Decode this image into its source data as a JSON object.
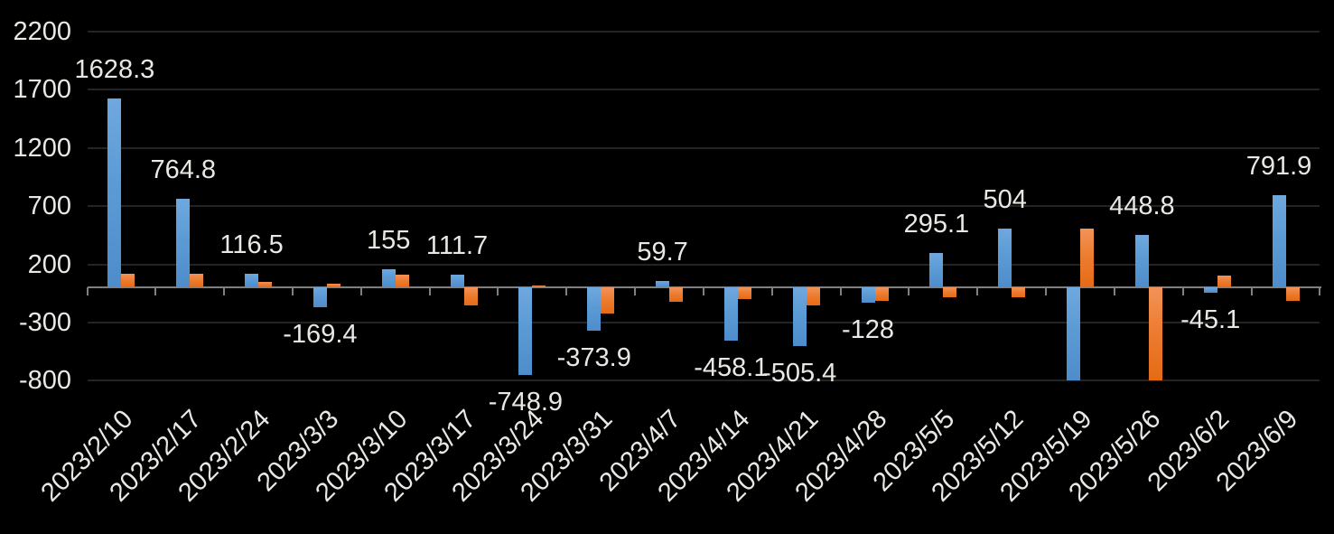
{
  "chart_data": {
    "type": "bar",
    "title": "",
    "legend": "none",
    "background_color": "#000000",
    "gridline_color": "#242424",
    "axis_line_color": "#7F7F7F",
    "text_color": "#EAE8E3",
    "categories": [
      "2023/2/10",
      "2023/2/17",
      "2023/2/24",
      "2023/3/3",
      "2023/3/10",
      "2023/3/17",
      "2023/3/24",
      "2023/3/31",
      "2023/4/7",
      "2023/4/14",
      "2023/4/21",
      "2023/4/28",
      "2023/5/5",
      "2023/5/12",
      "2023/5/19",
      "2023/5/26",
      "2023/6/2",
      "2023/6/9"
    ],
    "series": [
      {
        "name": "series-blue",
        "color": "#5B9BD5",
        "values": [
          1628.3,
          764.8,
          116.5,
          -169.4,
          155,
          111.7,
          -748.9,
          -373.9,
          59.7,
          -458.1,
          -505.4,
          -128,
          295.1,
          504,
          -800,
          448.8,
          -45.1,
          791.9
        ],
        "data_labels": [
          "1628.3",
          "764.8",
          "116.5",
          "-169.4",
          "155",
          "111.7",
          "-748.9",
          "-373.9",
          "59.7",
          "-458.1",
          "-505.4",
          "-128",
          "295.1",
          "504",
          "",
          "448.8",
          "-45.1",
          "791.9"
        ]
      },
      {
        "name": "series-orange",
        "color": "#ED7D31",
        "values": [
          120,
          120,
          50,
          35,
          110,
          -150,
          15,
          -220,
          -120,
          -100,
          -150,
          -115,
          -85,
          -85,
          510,
          -800,
          100,
          -115
        ],
        "data_labels": [
          "",
          "",
          "",
          "",
          "",
          "",
          "",
          "",
          "",
          "",
          "",
          "",
          "",
          "",
          "",
          "",
          "",
          ""
        ]
      }
    ],
    "y_axis": {
      "tick_labels": [
        "2200",
        "1700",
        "1200",
        "700",
        "200",
        "-300",
        "-800"
      ],
      "tick_values": [
        2200,
        1700,
        1200,
        700,
        200,
        -300,
        -800
      ],
      "min": -800,
      "max": 2200,
      "grid": true
    },
    "x_axis": {
      "label_rotation_deg": 45,
      "tick_marks": true
    }
  }
}
